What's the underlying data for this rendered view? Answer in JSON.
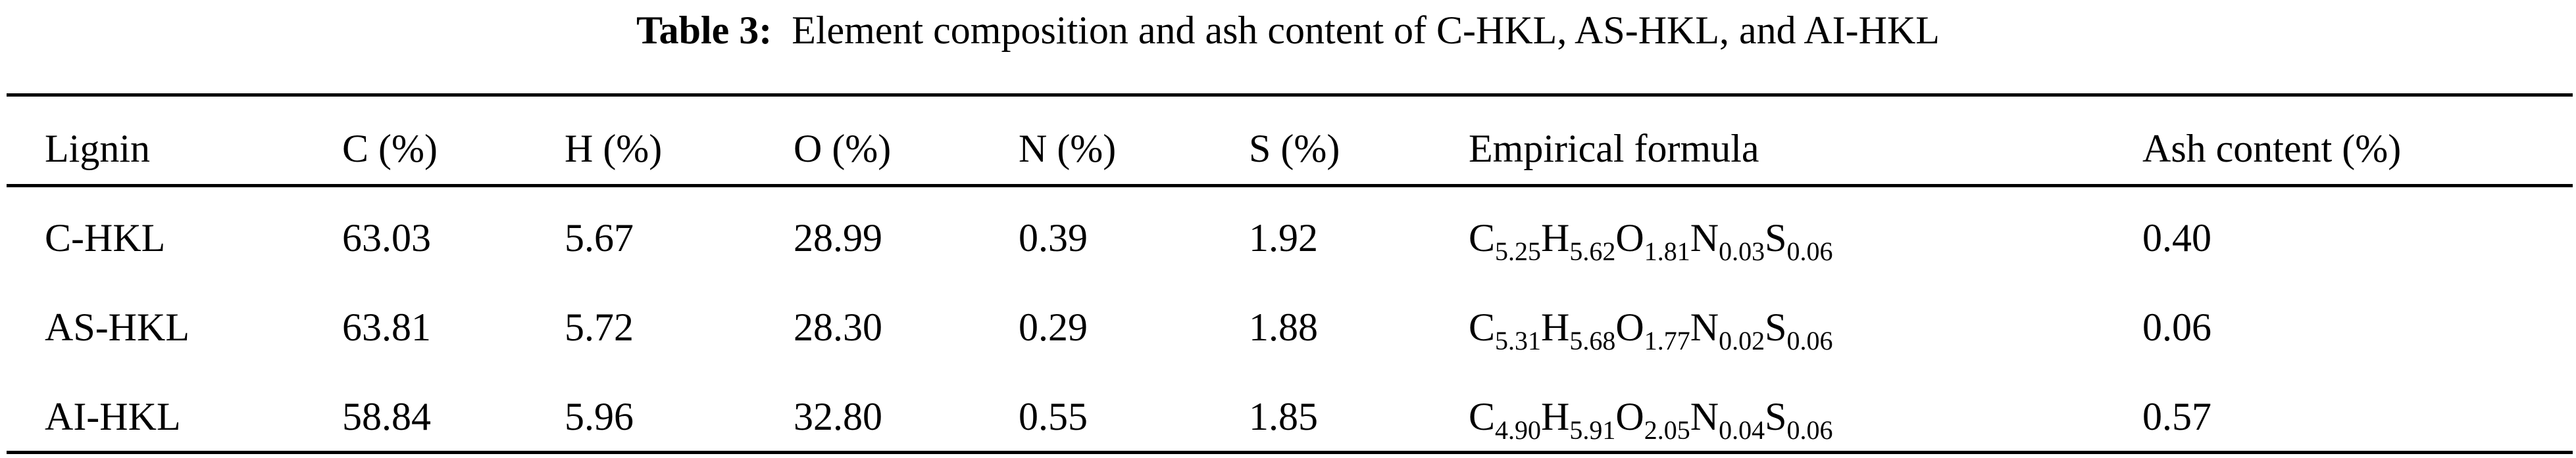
{
  "caption": {
    "label": "Table 3:",
    "text": "Element composition and ash content of C-HKL, AS-HKL, and AI-HKL"
  },
  "table": {
    "headers": [
      "Lignin",
      "C (%)",
      "H (%)",
      "O (%)",
      "N (%)",
      "S (%)",
      "Empirical formula",
      "Ash content (%)"
    ],
    "rows": [
      {
        "lignin": "C-HKL",
        "C": "63.03",
        "H": "5.67",
        "O": "28.99",
        "N": "0.39",
        "S": "1.92",
        "formula": [
          {
            "el": "C",
            "sub": "5.25"
          },
          {
            "el": "H",
            "sub": "5.62"
          },
          {
            "el": "O",
            "sub": "1.81"
          },
          {
            "el": "N",
            "sub": "0.03"
          },
          {
            "el": "S",
            "sub": "0.06"
          }
        ],
        "ash": "0.40"
      },
      {
        "lignin": "AS-HKL",
        "C": "63.81",
        "H": "5.72",
        "O": "28.30",
        "N": "0.29",
        "S": "1.88",
        "formula": [
          {
            "el": "C",
            "sub": "5.31"
          },
          {
            "el": "H",
            "sub": "5.68"
          },
          {
            "el": "O",
            "sub": "1.77"
          },
          {
            "el": "N",
            "sub": "0.02"
          },
          {
            "el": "S",
            "sub": "0.06"
          }
        ],
        "ash": "0.06"
      },
      {
        "lignin": "AI-HKL",
        "C": "58.84",
        "H": "5.96",
        "O": "32.80",
        "N": "0.55",
        "S": "1.85",
        "formula": [
          {
            "el": "C",
            "sub": "4.90"
          },
          {
            "el": "H",
            "sub": "5.91"
          },
          {
            "el": "O",
            "sub": "2.05"
          },
          {
            "el": "N",
            "sub": "0.04"
          },
          {
            "el": "S",
            "sub": "0.06"
          }
        ],
        "ash": "0.57"
      }
    ]
  }
}
